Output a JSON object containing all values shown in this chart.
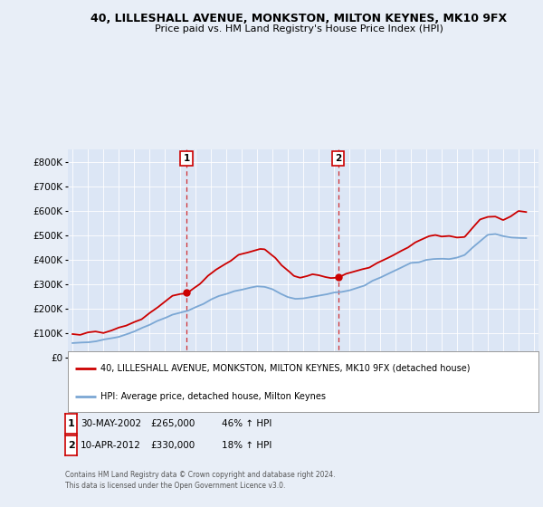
{
  "title": "40, LILLESHALL AVENUE, MONKSTON, MILTON KEYNES, MK10 9FX",
  "subtitle": "Price paid vs. HM Land Registry's House Price Index (HPI)",
  "footnote": "Contains HM Land Registry data © Crown copyright and database right 2024.\nThis data is licensed under the Open Government Licence v3.0.",
  "legend_label_red": "40, LILLESHALL AVENUE, MONKSTON, MILTON KEYNES, MK10 9FX (detached house)",
  "legend_label_blue": "HPI: Average price, detached house, Milton Keynes",
  "annotation1_date": "30-MAY-2002",
  "annotation1_price": "£265,000",
  "annotation1_hpi": "46% ↑ HPI",
  "annotation2_date": "10-APR-2012",
  "annotation2_price": "£330,000",
  "annotation2_hpi": "18% ↑ HPI",
  "red_color": "#cc0000",
  "blue_color": "#7ba7d4",
  "background_color": "#e8eef7",
  "plot_bg_color": "#dce6f5",
  "ylim": [
    0,
    850000
  ],
  "yticks": [
    0,
    100000,
    200000,
    300000,
    400000,
    500000,
    600000,
    700000,
    800000
  ],
  "ytick_labels": [
    "£0",
    "£100K",
    "£200K",
    "£300K",
    "£400K",
    "£500K",
    "£600K",
    "£700K",
    "£800K"
  ],
  "xlim_start": 1994.7,
  "xlim_end": 2025.3,
  "marker1_x": 2002.42,
  "marker1_y": 265000,
  "marker2_x": 2012.28,
  "marker2_y": 330000,
  "vline1_x": 2002.42,
  "vline2_x": 2012.28,
  "red_points": {
    "years": [
      1995.0,
      1995.5,
      1996.0,
      1996.5,
      1997.0,
      1997.5,
      1998.0,
      1998.5,
      1999.0,
      1999.5,
      2000.0,
      2000.5,
      2001.0,
      2001.5,
      2002.0,
      2002.42,
      2002.8,
      2003.3,
      2003.8,
      2004.3,
      2004.8,
      2005.3,
      2005.8,
      2006.3,
      2006.8,
      2007.2,
      2007.5,
      2007.8,
      2008.2,
      2008.6,
      2009.0,
      2009.4,
      2009.8,
      2010.2,
      2010.6,
      2011.0,
      2011.4,
      2011.8,
      2012.28,
      2012.8,
      2013.3,
      2013.8,
      2014.3,
      2014.8,
      2015.3,
      2015.8,
      2016.3,
      2016.8,
      2017.3,
      2017.8,
      2018.2,
      2018.6,
      2019.0,
      2019.5,
      2020.0,
      2020.5,
      2021.0,
      2021.5,
      2022.0,
      2022.5,
      2023.0,
      2023.5,
      2024.0,
      2024.5
    ],
    "values": [
      95000,
      97000,
      100000,
      103000,
      108000,
      115000,
      122000,
      132000,
      145000,
      160000,
      178000,
      200000,
      228000,
      248000,
      258000,
      265000,
      278000,
      305000,
      330000,
      358000,
      378000,
      398000,
      415000,
      428000,
      438000,
      445000,
      440000,
      425000,
      405000,
      375000,
      348000,
      335000,
      328000,
      335000,
      338000,
      332000,
      330000,
      328000,
      330000,
      340000,
      348000,
      358000,
      370000,
      385000,
      400000,
      415000,
      430000,
      448000,
      468000,
      485000,
      495000,
      498000,
      500000,
      498000,
      492000,
      495000,
      530000,
      558000,
      578000,
      572000,
      568000,
      578000,
      598000,
      592000
    ]
  },
  "blue_points": {
    "years": [
      1995.0,
      1995.5,
      1996.0,
      1996.5,
      1997.0,
      1997.5,
      1998.0,
      1998.5,
      1999.0,
      1999.5,
      2000.0,
      2000.5,
      2001.0,
      2001.5,
      2002.0,
      2002.5,
      2003.0,
      2003.5,
      2004.0,
      2004.5,
      2005.0,
      2005.5,
      2006.0,
      2006.5,
      2007.0,
      2007.5,
      2008.0,
      2008.5,
      2009.0,
      2009.5,
      2010.0,
      2010.5,
      2011.0,
      2011.5,
      2012.0,
      2012.5,
      2013.0,
      2013.5,
      2014.0,
      2014.5,
      2015.0,
      2015.5,
      2016.0,
      2016.5,
      2017.0,
      2017.5,
      2018.0,
      2018.5,
      2019.0,
      2019.5,
      2020.0,
      2020.5,
      2021.0,
      2021.5,
      2022.0,
      2022.5,
      2023.0,
      2023.5,
      2024.0,
      2024.5
    ],
    "values": [
      58000,
      60000,
      63000,
      67000,
      72000,
      79000,
      87000,
      97000,
      108000,
      120000,
      133000,
      148000,
      162000,
      175000,
      182000,
      192000,
      205000,
      220000,
      238000,
      252000,
      262000,
      270000,
      278000,
      285000,
      290000,
      288000,
      278000,
      262000,
      248000,
      240000,
      245000,
      250000,
      255000,
      260000,
      265000,
      270000,
      275000,
      282000,
      295000,
      312000,
      328000,
      342000,
      358000,
      372000,
      385000,
      392000,
      398000,
      402000,
      405000,
      405000,
      408000,
      420000,
      448000,
      475000,
      498000,
      505000,
      498000,
      490000,
      488000,
      485000
    ]
  }
}
